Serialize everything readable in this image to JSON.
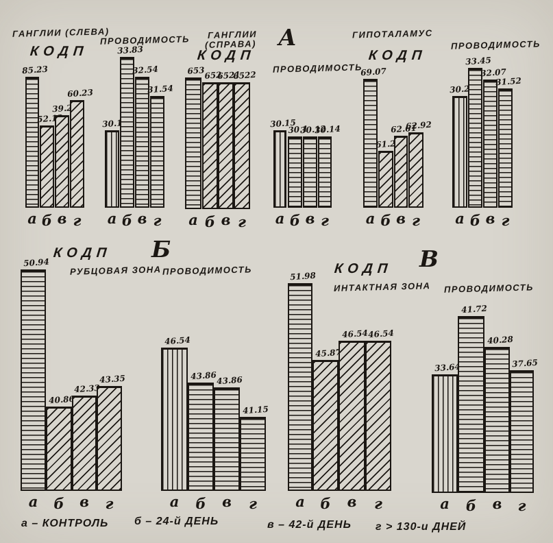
{
  "page": {
    "colors": {
      "paper": "#d9d6ce",
      "ink": "#1b1713"
    }
  },
  "sections": {
    "a": "А",
    "b": "Б",
    "v": "В"
  },
  "legend": {
    "items": [
      "а – КОНТРОЛЬ",
      "б – 24-й ДЕНЬ",
      "в – 42-й ДЕНЬ",
      "г > 130-и ДНЕЙ"
    ]
  },
  "chart_data": [
    {
      "id": "ganglia-left-kodp",
      "type": "bar",
      "region": "ГАНГЛИИ (СЛЕВА)",
      "header": "КОДП",
      "categories": [
        "а",
        "б",
        "в",
        "г"
      ],
      "values": [
        85.23,
        52.12,
        39.21,
        60.23
      ],
      "value_labels": [
        "85.23",
        "52.12",
        "39.21",
        "60.23"
      ],
      "hatches": [
        "h",
        "d",
        "d",
        "d"
      ]
    },
    {
      "id": "ganglia-left-conductivity",
      "type": "bar",
      "title": "ПРОВОДИМОСТЬ",
      "categories": [
        "а",
        "б",
        "в",
        "г"
      ],
      "values": [
        30.12,
        33.83,
        32.54,
        31.54
      ],
      "value_labels": [
        "30.12",
        "33.83",
        "32.54",
        "31.54"
      ],
      "hatches": [
        "v",
        "h",
        "h",
        "h"
      ]
    },
    {
      "id": "ganglia-right-kodp",
      "type": "bar",
      "region": "ГАНГЛИИ",
      "region2": "(СПРАВА)",
      "header": "КОДП",
      "categories": [
        "а",
        "б",
        "в",
        "г"
      ],
      "values": [
        65.3,
        65.2,
        65.21,
        65.22
      ],
      "value_labels": [
        "653",
        "652",
        "6521",
        "6522"
      ],
      "hatches": [
        "h",
        "d",
        "d",
        "d"
      ]
    },
    {
      "id": "ganglia-right-conductivity",
      "type": "bar",
      "title": "ПРОВОДИМОСТЬ",
      "categories": [
        "а",
        "б",
        "в",
        "г"
      ],
      "values": [
        30.15,
        30.1,
        30.12,
        30.14
      ],
      "value_labels": [
        "30.15",
        "30.1",
        "30.12",
        "30.14"
      ],
      "hatches": [
        "v",
        "h",
        "h",
        "h"
      ]
    },
    {
      "id": "hypothalamus-kodp",
      "type": "bar",
      "region": "ГИПОТАЛАМУС",
      "header": "КОДП",
      "categories": [
        "а",
        "б",
        "в",
        "г"
      ],
      "values": [
        69.07,
        61.29,
        62.61,
        62.92
      ],
      "value_labels": [
        "69.07",
        "61.29",
        "62.61",
        "62.92"
      ],
      "hatches": [
        "h",
        "d",
        "d",
        "d"
      ]
    },
    {
      "id": "hypothalamus-conductivity",
      "type": "bar",
      "title": "ПРОВОДИМОСТЬ",
      "categories": [
        "а",
        "б",
        "в",
        "г"
      ],
      "values": [
        30.25,
        33.45,
        32.07,
        31.52
      ],
      "value_labels": [
        "30.25",
        "33.45",
        "32.07",
        "31.52"
      ],
      "hatches": [
        "v",
        "h",
        "h",
        "h"
      ]
    },
    {
      "id": "scar-zone-kodp",
      "type": "bar",
      "header": "КОДП",
      "region": "РУБЦОВАЯ ЗОНА",
      "categories": [
        "а",
        "б",
        "в",
        "г"
      ],
      "values": [
        50.94,
        40.86,
        42.33,
        43.35
      ],
      "value_labels": [
        "50.94",
        "40.86",
        "42.33",
        "43.35"
      ],
      "hatches": [
        "h",
        "d",
        "d",
        "d"
      ]
    },
    {
      "id": "scar-zone-conductivity",
      "type": "bar",
      "title": "ПРОВОДИМОСТЬ",
      "categories": [
        "а",
        "б",
        "в",
        "г"
      ],
      "values": [
        46.54,
        43.86,
        43.86,
        41.15
      ],
      "value_labels": [
        "46.54",
        "43.86",
        "43.86",
        "41.15"
      ],
      "hatches": [
        "v",
        "h",
        "h",
        "h"
      ]
    },
    {
      "id": "intact-zone-kodp",
      "type": "bar",
      "header": "КОДП",
      "region": "ИНТАКТНАЯ ЗОНА",
      "categories": [
        "а",
        "б",
        "в",
        "г"
      ],
      "values": [
        51.98,
        45.87,
        46.54,
        46.54
      ],
      "value_labels": [
        "51.98",
        "45.87",
        "46.54",
        "46.54"
      ],
      "hatches": [
        "h",
        "d",
        "d",
        "d"
      ]
    },
    {
      "id": "intact-zone-conductivity",
      "type": "bar",
      "title": "ПРОВОДИМОСТЬ",
      "categories": [
        "а",
        "б",
        "в",
        "г"
      ],
      "values": [
        33.64,
        41.72,
        40.28,
        37.65
      ],
      "value_labels": [
        "33.64",
        "41.72",
        "40.28",
        "37.65"
      ],
      "hatches": [
        "v",
        "h",
        "h",
        "h"
      ]
    }
  ]
}
